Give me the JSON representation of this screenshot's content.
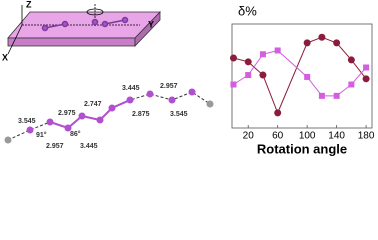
{
  "chart_data": {
    "type": "line",
    "title": "δ%",
    "x_label": "Rotation angle",
    "x": [
      0,
      20,
      40,
      60,
      100,
      120,
      140,
      160,
      180
    ],
    "series": [
      {
        "color": "#8c1c3c",
        "marker": "circle",
        "values": [
          47,
          45,
          38,
          18,
          55,
          58,
          55,
          46,
          36
        ]
      },
      {
        "color": "#d35fe0",
        "marker": "square",
        "values": [
          33,
          38,
          49,
          51,
          37,
          27,
          27,
          33,
          42
        ]
      }
    ],
    "xlim": [
      -2,
      188
    ],
    "ylim": [
      10,
      65
    ],
    "xticks": [
      20,
      60,
      100,
      140,
      180
    ]
  },
  "diagram": {
    "axes": [
      "Z",
      "Y",
      "X"
    ],
    "labels": [
      "3.545",
      "2.975",
      "91°",
      "86°",
      "2.957",
      "3.445",
      "2.747",
      "3.445",
      "2.957",
      "2.875",
      "3.545"
    ]
  }
}
